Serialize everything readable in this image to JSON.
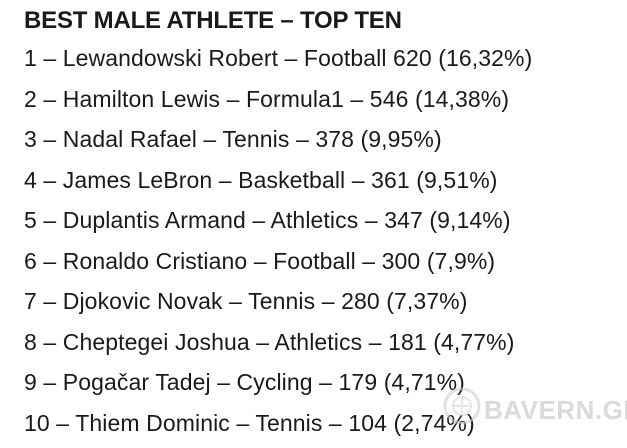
{
  "document": {
    "title": "BEST MALE ATHLETE – TOP TEN",
    "entries": [
      "1 – Lewandowski Robert – Football 620 (16,32%)",
      "2 – Hamilton Lewis – Formula1 – 546 (14,38%)",
      "3 – Nadal Rafael – Tennis – 378 (9,95%)",
      "4 – James LeBron – Basketball – 361 (9,51%)",
      "5 – Duplantis Armand – Athletics – 347 (9,14%)",
      "6 – Ronaldo Cristiano – Football – 300 (7,9%)",
      "7 – Djokovic Novak – Tennis – 280 (7,37%)",
      "8 – Cheptegei Joshua – Athletics – 181 (4,77%)",
      "9 – Pogačar Tadej – Cycling – 179 (4,71%)",
      "10 – Thiem Dominic – Tennis – 104 (2,74%)"
    ]
  },
  "watermark": {
    "brand": "BAVERN.GE",
    "icon": "bavarian-logo-icon"
  }
}
